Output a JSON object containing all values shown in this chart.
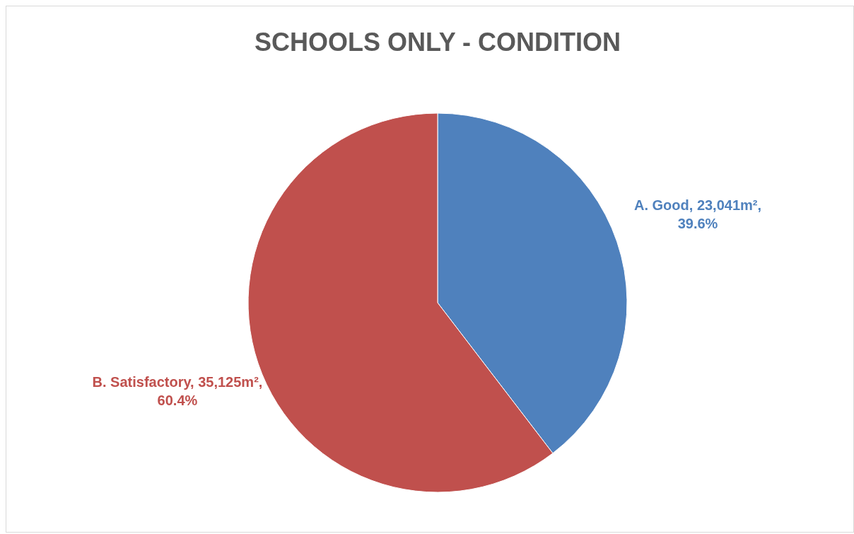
{
  "chart_data": {
    "type": "pie",
    "title": "SCHOOLS ONLY - CONDITION",
    "categories": [
      "A. Good",
      "B. Satisfactory"
    ],
    "values": [
      39.6,
      60.4
    ],
    "colors": [
      "#4f81bd",
      "#c0504d"
    ],
    "value_labels": [
      "23,041m², 39.6%",
      "35,125m², 60.4%"
    ],
    "legend": false
  }
}
